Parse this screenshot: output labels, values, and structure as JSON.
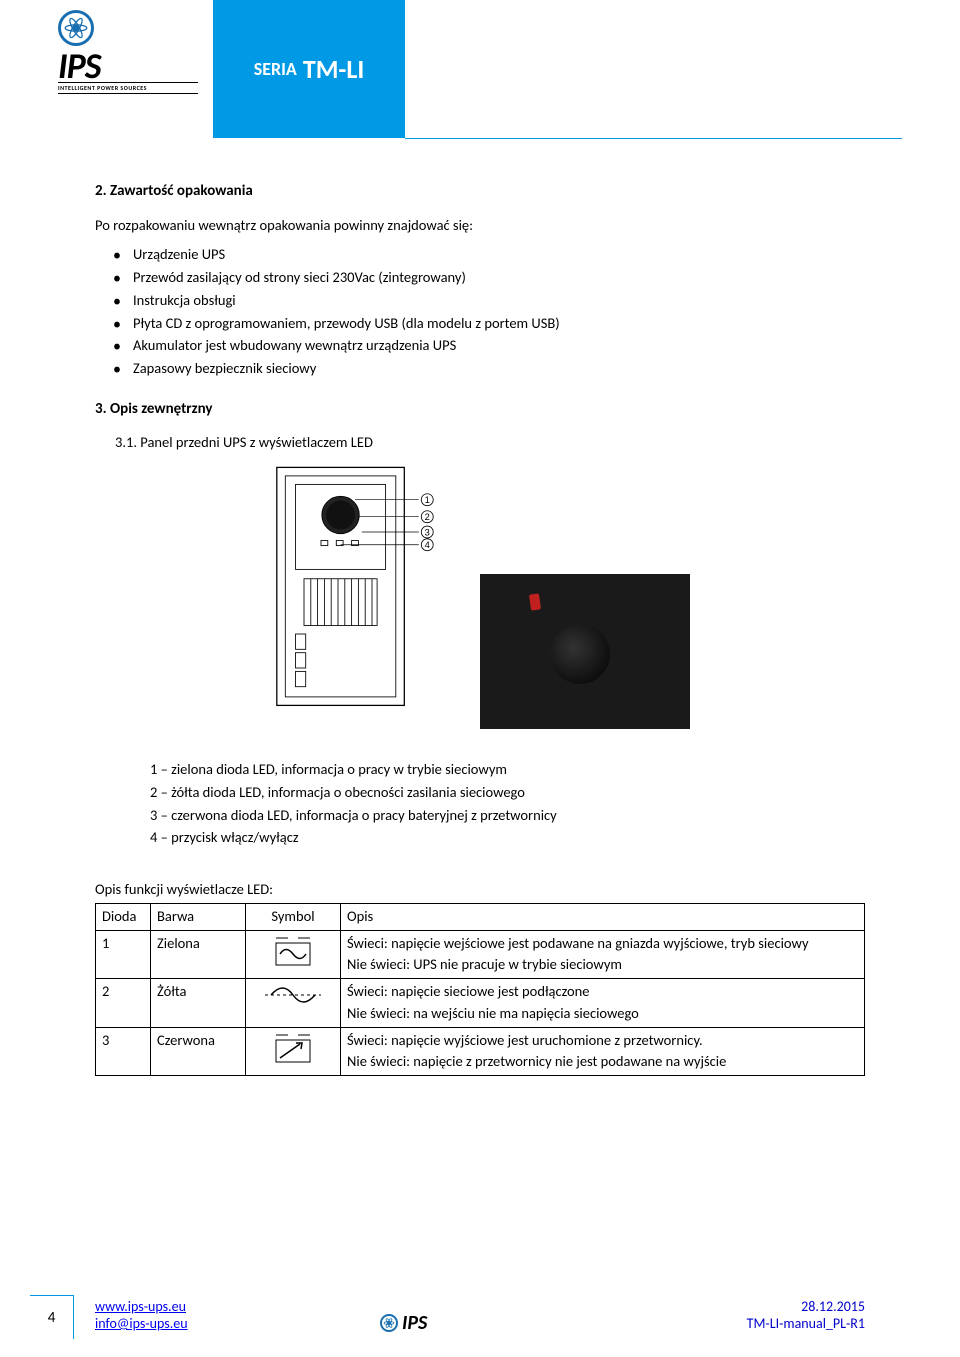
{
  "header": {
    "logo_text": "IPS",
    "logo_sub": "INTELLIGENT POWER SOURCES",
    "title_small": "SERIA",
    "title_big": "TM-LI"
  },
  "section2": {
    "heading": "2. Zawartość opakowania",
    "intro": "Po rozpakowaniu wewnątrz opakowania powinny znajdować się:",
    "items": [
      "Urządzenie UPS",
      "Przewód zasilający od strony sieci 230Vac (zintegrowany)",
      "Instrukcja obsługi",
      "Płyta CD z oprogramowaniem, przewody USB (dla modelu z portem USB)",
      "Akumulator jest wbudowany wewnątrz urządzenia UPS",
      "Zapasowy bezpiecznik sieciowy"
    ]
  },
  "section3": {
    "heading": "3. Opis zewnętrzny",
    "sub": "3.1. Panel przedni UPS z wyświetlaczem LED"
  },
  "legend": {
    "l1": "1 – zielona dioda LED, informacja o pracy w trybie sieciowym",
    "l2": "2 – żółta dioda LED, informacja o obecności zasilania sieciowego",
    "l3": "3 – czerwona dioda LED, informacja o pracy bateryjnej z przetwornicy",
    "l4": "4 – przycisk włącz/wyłącz"
  },
  "table": {
    "caption": "Opis funkcji wyświetlacze LED:",
    "headers": {
      "c1": "Dioda",
      "c2": "Barwa",
      "c3": "Symbol",
      "c4": "Opis"
    },
    "rows": [
      {
        "dioda": "1",
        "barwa": "Zielona",
        "opis": "Świeci: napięcie wejściowe jest podawane na gniazda wyjściowe, tryb sieciowy\nNie świeci: UPS nie pracuje w trybie sieciowym"
      },
      {
        "dioda": "2",
        "barwa": "Żółta",
        "opis": "Świeci: napięcie sieciowe jest podłączone\nNie świeci: na wejściu nie ma napięcia sieciowego"
      },
      {
        "dioda": "3",
        "barwa": "Czerwona",
        "opis": "Świeci: napięcie wyjściowe jest uruchomione z przetwornicy.\nNie świeci: napięcie z przetwornicy nie jest podawane na wyjście"
      }
    ]
  },
  "footer": {
    "page": "4",
    "url": "www.ips-ups.eu",
    "email": "info@ips-ups.eu",
    "date": "28.12.2015",
    "doc": "TM-LI-manual_PL-R1"
  },
  "colors": {
    "brand_blue": "#0099e5",
    "logo_blue": "#1a6fb0",
    "link": "#0000ee",
    "footer_text": "#0000cc"
  }
}
